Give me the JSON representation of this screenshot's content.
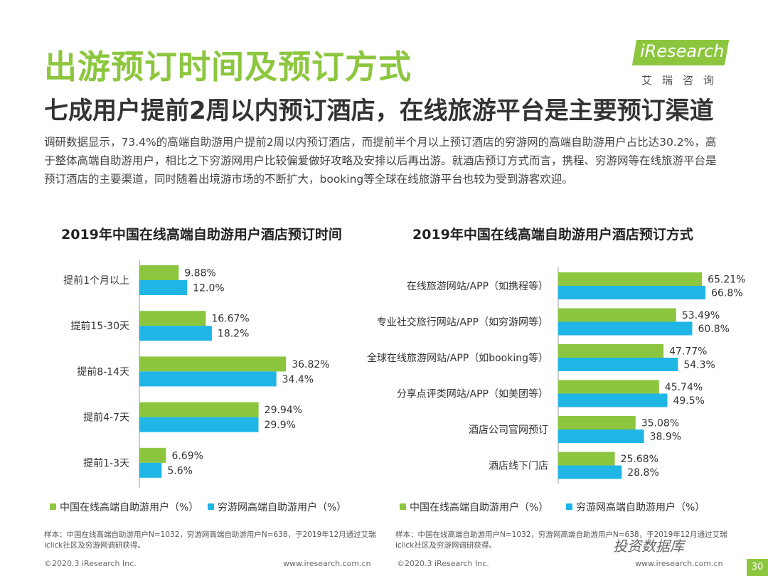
{
  "header": {
    "title": "出游预订时间及预订方式",
    "subtitle": "七成用户提前2周以内预订酒店，在线旅游平台是主要预订渠道",
    "description": "调研数据显示，73.4%的高端自助游用户提前2周以内预订酒店，而提前半个月以上预订酒店的穷游网的高端自助游用户占比达30.2%，高于整体高端自助游用户，相比之下穷游网用户比较偏爱做好攻略及安排以后再出游。就酒店预订方式而言，携程、穷游网等在线旅游平台是预订酒店的主要渠道，同时随着出境游市场的不断扩大，booking等全球在线旅游平台也较为受到游客欢迎。"
  },
  "logo": {
    "name": "iResearch",
    "sub": "艾瑞咨询"
  },
  "colors": {
    "green": "#8cc63f",
    "blue": "#1fb6e6"
  },
  "chart_data": [
    {
      "type": "bar",
      "orientation": "horizontal",
      "title": "2019年中国在线高端自助游用户酒店预订时间",
      "categories": [
        "提前1个月以上",
        "提前15-30天",
        "提前8-14天",
        "提前4-7天",
        "提前1-3天"
      ],
      "series": [
        {
          "name": "中国在线高端自助游用户（%）",
          "values": [
            9.88,
            16.67,
            36.82,
            29.94,
            6.69
          ],
          "labels": [
            "9.88%",
            "16.67%",
            "36.82%",
            "29.94%",
            "6.69%"
          ]
        },
        {
          "name": "穷游网高端自助游用户（%）",
          "values": [
            12.0,
            18.2,
            34.4,
            29.9,
            5.6
          ],
          "labels": [
            "12.0%",
            "18.2%",
            "34.4%",
            "29.9%",
            "5.6%"
          ]
        }
      ],
      "xlim": [
        0,
        40
      ],
      "note": "样本：中国在线高端自助游用户N=1032，穷游网高端自助游用户N=638，于2019年12月通过艾瑞iclick社区及穷游网调研获得。"
    },
    {
      "type": "bar",
      "orientation": "horizontal",
      "title": "2019年中国在线高端自助游用户酒店预订方式",
      "categories": [
        "在线旅游网站/APP（如携程等）",
        "专业社交旅行网站/APP（如穷游网等）",
        "全球在线旅游网站/APP（如booking等）",
        "分享点评类网站/APP（如美团等）",
        "酒店公司官网预订",
        "酒店线下门店"
      ],
      "series": [
        {
          "name": "中国在线高端自助游用户（%）",
          "values": [
            65.21,
            53.49,
            47.77,
            45.74,
            35.08,
            25.68
          ],
          "labels": [
            "65.21%",
            "53.49%",
            "47.77%",
            "45.74%",
            "35.08%",
            "25.68%"
          ]
        },
        {
          "name": "穷游网高端自助游用户（%）",
          "values": [
            66.8,
            60.8,
            54.3,
            49.5,
            38.9,
            28.8
          ],
          "labels": [
            "66.8%",
            "60.8%",
            "54.3%",
            "49.5%",
            "38.9%",
            "28.8%"
          ]
        }
      ],
      "xlim": [
        0,
        70
      ],
      "note": "样本：中国在线高端自助游用户N=1032，穷游网高端自助游用户N=638，于2019年12月通过艾瑞iclick社区及穷游网调研获得。"
    }
  ],
  "footer": {
    "left1": "©2020.3 iResearch Inc.",
    "url1": "www.iresearch.com.cn",
    "left2": "©2020.3 iResearch Inc.",
    "url2": "www.iresearch.com.cn",
    "page": "30",
    "watermark": "投资数据库"
  }
}
